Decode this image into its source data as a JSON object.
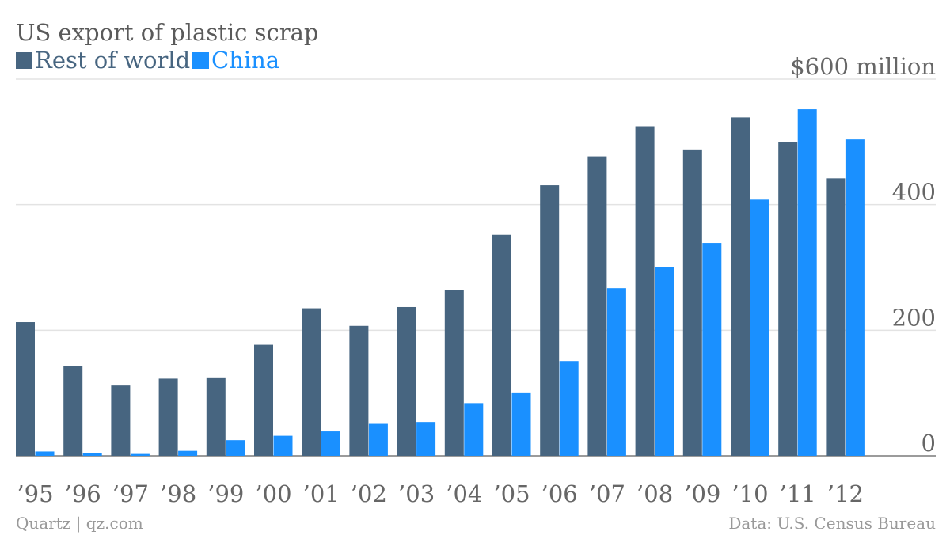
{
  "header": {
    "title": "US export of plastic scrap"
  },
  "legend": [
    {
      "label": "Rest of world",
      "color": "#476580"
    },
    {
      "label": "China",
      "color": "#1a90ff"
    }
  ],
  "footer": {
    "source_left": "Quartz | qz.com",
    "source_right": "Data: U.S. Census Bureau"
  },
  "chart_data": {
    "type": "bar",
    "title": "US export of plastic scrap",
    "xlabel": "",
    "ylabel": "",
    "categories": [
      "’95",
      "’96",
      "’97",
      "’98",
      "’99",
      "’00",
      "’01",
      "’02",
      "’03",
      "’04",
      "’05",
      "’06",
      "’07",
      "’08",
      "’09",
      "’10",
      "’11",
      "’12"
    ],
    "series": [
      {
        "name": "Rest of world",
        "color": "#476580",
        "values": [
          213,
          143,
          112,
          123,
          125,
          177,
          235,
          207,
          237,
          264,
          352,
          431,
          477,
          525,
          488,
          539,
          500,
          442
        ]
      },
      {
        "name": "China",
        "color": "#1a90ff",
        "values": [
          7,
          4,
          3,
          8,
          25,
          32,
          39,
          51,
          54,
          84,
          101,
          151,
          267,
          300,
          339,
          408,
          552,
          504
        ]
      }
    ],
    "ylim": [
      0,
      600
    ],
    "y_ticks": [
      {
        "value": 0,
        "label": "0"
      },
      {
        "value": 200,
        "label": "200"
      },
      {
        "value": 400,
        "label": "400"
      },
      {
        "value": 600,
        "label": "$600 million"
      }
    ],
    "grid": true,
    "y_axis_side": "right",
    "legend_position": "top-left"
  }
}
